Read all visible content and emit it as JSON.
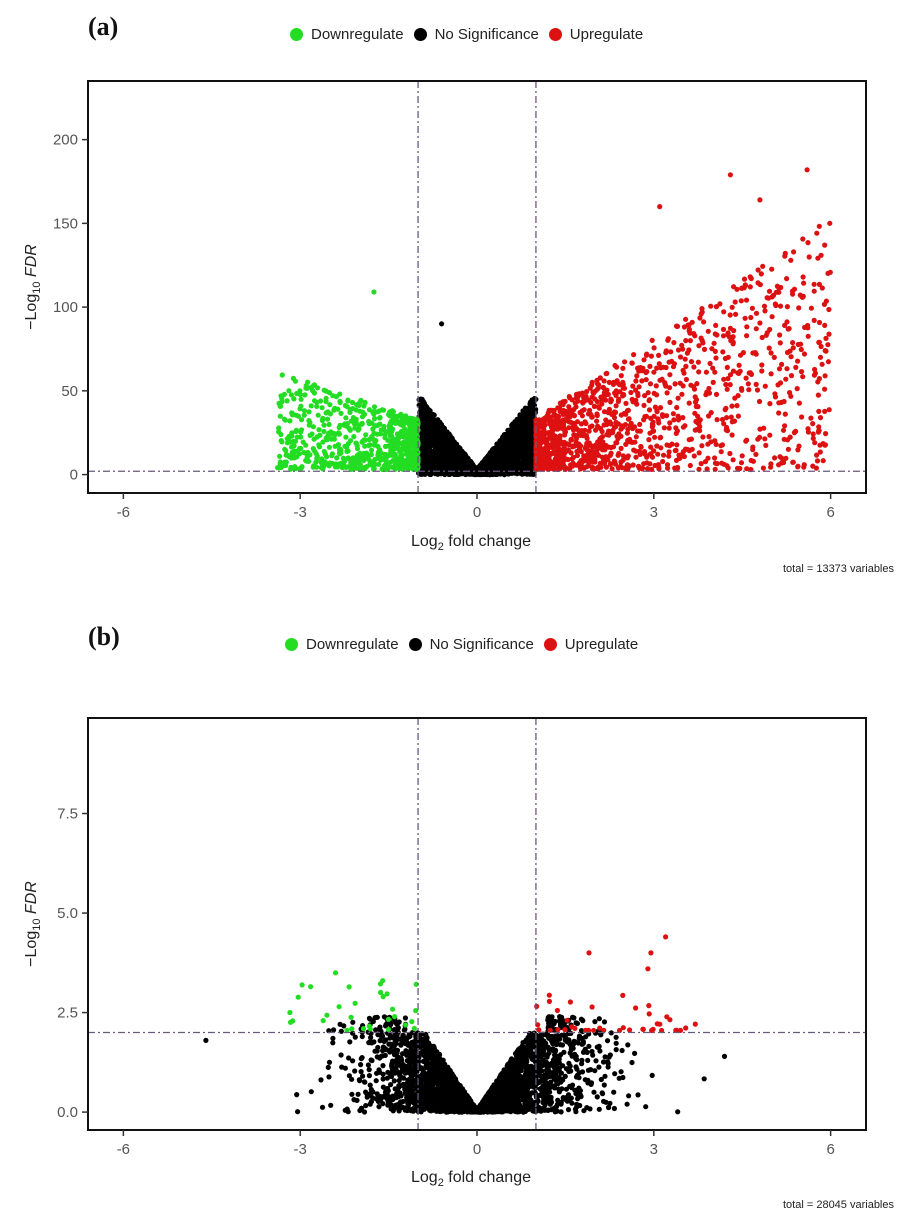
{
  "chart_data": [
    {
      "id": "a",
      "type": "scatter",
      "panel_label": "(a)",
      "title": "",
      "legend": [
        {
          "label": "Downregulate",
          "color": "#22dd22"
        },
        {
          "label": "No Significance",
          "color": "#000000"
        },
        {
          "label": "Upregulate",
          "color": "#dd1111"
        }
      ],
      "legend_position": "top-center",
      "xlabel_main": "Log",
      "xlabel_sub": "2",
      "xlabel_rest": " fold change",
      "ylabel_prefix": "−Log",
      "ylabel_sub": "10",
      "ylabel_italic": "FDR",
      "xlim": [
        -6.6,
        6.6
      ],
      "ylim": [
        -11,
        235
      ],
      "xticks": [
        -6,
        -3,
        0,
        3,
        6
      ],
      "xtick_labels": [
        "-6",
        "-3",
        "0",
        "3",
        "6"
      ],
      "yticks": [
        0,
        50,
        100,
        150,
        200
      ],
      "ytick_labels": [
        "0",
        "50",
        "100",
        "150",
        "200"
      ],
      "thresholds": {
        "log2fc": [
          -1,
          1
        ],
        "neg_log10_fdr": 2
      },
      "caption": "total = 13373 variables",
      "total_variables": 13373,
      "grid": false,
      "series": [
        {
          "name": "Downregulate",
          "color": "#22dd22",
          "x_range": [
            -3.4,
            -1.0
          ],
          "y_max": 109
        },
        {
          "name": "No Significance",
          "color": "#000000",
          "x_range": [
            -1.0,
            1.0
          ],
          "y_max": 90
        },
        {
          "name": "Upregulate",
          "color": "#dd1111",
          "x_range": [
            1.0,
            6.0
          ],
          "y_max": 182
        }
      ],
      "highlight_points": [
        {
          "series": "Downregulate",
          "x": -1.75,
          "y": 109
        },
        {
          "series": "No Significance",
          "x": -0.6,
          "y": 90
        },
        {
          "series": "Upregulate",
          "x": 5.6,
          "y": 182
        },
        {
          "series": "Upregulate",
          "x": 4.3,
          "y": 179
        },
        {
          "series": "Upregulate",
          "x": 4.8,
          "y": 164
        },
        {
          "series": "Upregulate",
          "x": 3.1,
          "y": 160
        },
        {
          "series": "Upregulate",
          "x": 5.9,
          "y": 137
        }
      ]
    },
    {
      "id": "b",
      "type": "scatter",
      "panel_label": "(b)",
      "title": "",
      "legend": [
        {
          "label": "Downregulate",
          "color": "#22dd22"
        },
        {
          "label": "No Significance",
          "color": "#000000"
        },
        {
          "label": "Upregulate",
          "color": "#dd1111"
        }
      ],
      "legend_position": "top-center",
      "xlabel_main": "Log",
      "xlabel_sub": "2",
      "xlabel_rest": " fold change",
      "ylabel_prefix": "−Log",
      "ylabel_sub": "10",
      "ylabel_italic": "FDR",
      "xlim": [
        -6.6,
        6.6
      ],
      "ylim": [
        -0.45,
        9.9
      ],
      "xticks": [
        -6,
        -3,
        0,
        3,
        6
      ],
      "xtick_labels": [
        "-6",
        "-3",
        "0",
        "3",
        "6"
      ],
      "yticks": [
        0,
        2.5,
        5.0,
        7.5
      ],
      "ytick_labels": [
        "0.0",
        "2.5",
        "5.0",
        "7.5"
      ],
      "thresholds": {
        "log2fc": [
          -1,
          1
        ],
        "neg_log10_fdr": 2
      },
      "caption": "total = 28045 variables",
      "total_variables": 28045,
      "grid": false,
      "series": [
        {
          "name": "Downregulate",
          "color": "#22dd22",
          "x_range": [
            -3.3,
            -1.0
          ],
          "y_max": 3.5
        },
        {
          "name": "No Significance",
          "color": "#000000",
          "x_range": [
            -4.6,
            4.2
          ],
          "y_max": 2.5
        },
        {
          "name": "Upregulate",
          "color": "#dd1111",
          "x_range": [
            1.0,
            3.8
          ],
          "y_max": 4.4
        }
      ],
      "highlight_points": [
        {
          "series": "Upregulate",
          "x": 3.2,
          "y": 4.4
        },
        {
          "series": "Upregulate",
          "x": 1.9,
          "y": 4.0
        },
        {
          "series": "Upregulate",
          "x": 2.95,
          "y": 4.0
        },
        {
          "series": "Upregulate",
          "x": 2.9,
          "y": 3.6
        },
        {
          "series": "Downregulate",
          "x": -2.4,
          "y": 3.5
        },
        {
          "series": "Downregulate",
          "x": -1.6,
          "y": 3.3
        },
        {
          "series": "No Significance",
          "x": -4.6,
          "y": 1.8
        },
        {
          "series": "No Significance",
          "x": 4.2,
          "y": 1.4
        }
      ]
    }
  ]
}
